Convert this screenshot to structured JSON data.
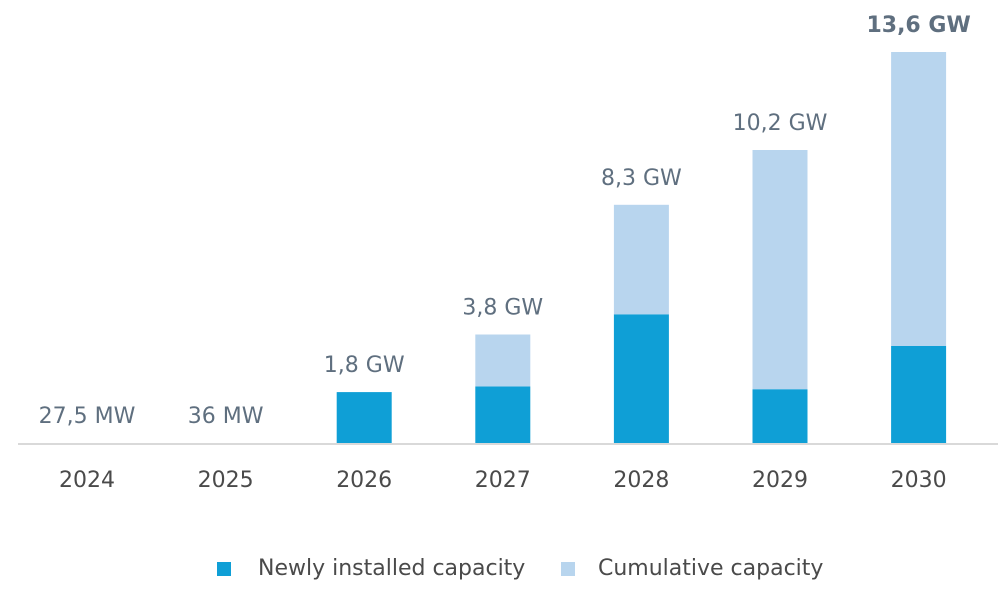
{
  "chart_data": {
    "type": "bar",
    "stacked": true,
    "categories": [
      "2024",
      "2025",
      "2026",
      "2027",
      "2028",
      "2029",
      "2030"
    ],
    "series": [
      {
        "name": "Newly installed capacity",
        "color": "#0f9fd6",
        "values": [
          0.0275,
          0.0085,
          1.8,
          2.0,
          4.5,
          1.9,
          3.4
        ]
      },
      {
        "name": "Cumulative capacity",
        "color": "#b8d5ee",
        "values": [
          0,
          0.0275,
          0,
          1.8,
          3.8,
          8.3,
          10.2
        ]
      }
    ],
    "total_labels": [
      "27,5 MW",
      "36 MW",
      "1,8 GW",
      "3,8 GW",
      "8,3 GW",
      "10,2 GW",
      "13,6 GW"
    ],
    "highlight_label_index": 6,
    "unit": "GW",
    "ylim": [
      0,
      13.6
    ],
    "grid": false,
    "legend_position": "bottom"
  }
}
